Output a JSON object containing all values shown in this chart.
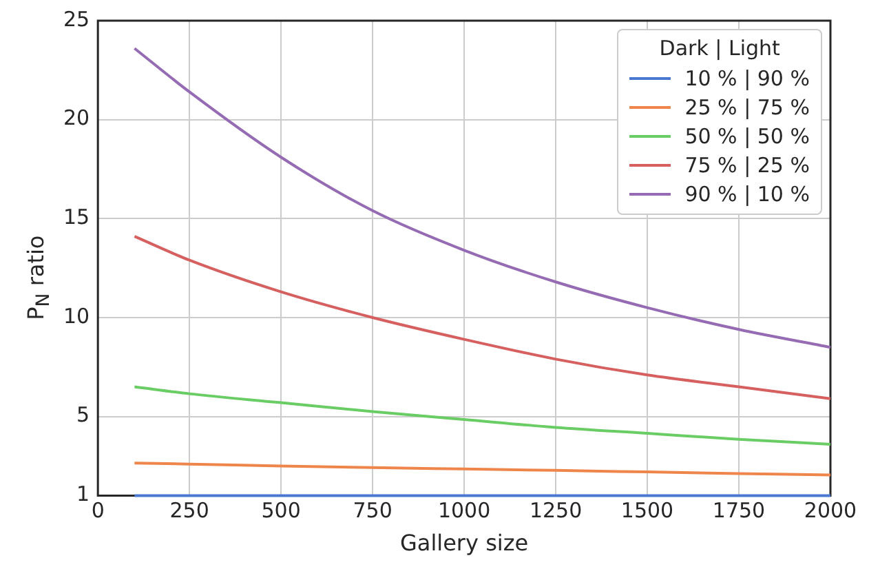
{
  "chart_data": {
    "type": "line",
    "xlabel": "Gallery size",
    "ylabel": "P$_{N}$ ratio",
    "legend_title": "Dark | Light",
    "legend": "top right",
    "grid": true,
    "marker": "none",
    "line_style": "solid",
    "x": [
      100,
      250,
      500,
      750,
      1000,
      1250,
      1500,
      1750,
      2000
    ],
    "xlim": [
      0,
      2000
    ],
    "xticks": [
      0,
      250,
      500,
      750,
      1000,
      1250,
      1500,
      1750,
      2000
    ],
    "ylim": [
      1,
      25
    ],
    "yticks": [
      1,
      5,
      10,
      15,
      20,
      25
    ],
    "series": [
      {
        "name": "10 % | 90 %",
        "color": "#4878d0",
        "values": [
          1,
          1,
          1,
          1,
          1,
          1,
          1,
          1,
          1
        ]
      },
      {
        "name": "25 % | 75 %",
        "color": "#ee854a",
        "values": [
          2.65,
          2.6,
          2.5,
          2.42,
          2.35,
          2.28,
          2.2,
          2.12,
          2.05
        ]
      },
      {
        "name": "50 % | 50 %",
        "color": "#6acc64",
        "values": [
          6.5,
          6.15,
          5.7,
          5.25,
          4.85,
          4.45,
          4.15,
          3.85,
          3.6
        ]
      },
      {
        "name": "75 % | 25 %",
        "color": "#d65f5f",
        "values": [
          14.1,
          12.9,
          11.3,
          10.0,
          8.9,
          7.9,
          7.1,
          6.5,
          5.9
        ]
      },
      {
        "name": "90 % | 10 %",
        "color": "#956cb4",
        "values": [
          23.6,
          21.4,
          18.1,
          15.4,
          13.4,
          11.8,
          10.5,
          9.4,
          8.5
        ]
      }
    ]
  }
}
